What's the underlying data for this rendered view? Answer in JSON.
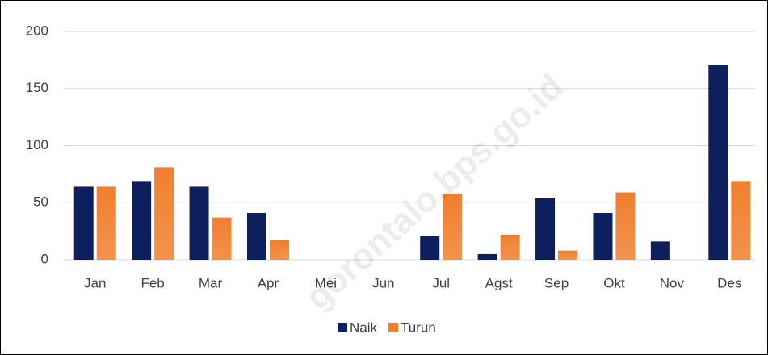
{
  "chart_data": {
    "type": "bar",
    "watermark": "gorontalo.bps.go.id",
    "categories": [
      "Jan",
      "Feb",
      "Mar",
      "Apr",
      "Mei",
      "Jun",
      "Jul",
      "Agst",
      "Sep",
      "Okt",
      "Nov",
      "Des"
    ],
    "series": [
      {
        "name": "Naik",
        "color": "#0d1f5c",
        "values": [
          64,
          69,
          64,
          41,
          0,
          0,
          21,
          5,
          54,
          41,
          16,
          171
        ]
      },
      {
        "name": "Turun",
        "color": "#f07f2e",
        "values": [
          64,
          81,
          37,
          17,
          0,
          0,
          58,
          22,
          8,
          59,
          0,
          69
        ]
      }
    ],
    "ylim": [
      0,
      200
    ],
    "yticks": [
      0,
      50,
      100,
      150,
      200
    ],
    "grid": true,
    "legend": "bottom"
  }
}
